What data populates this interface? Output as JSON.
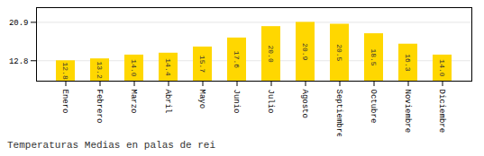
{
  "chart_data": {
    "type": "bar",
    "title": "Temperaturas Medias en palas de rei",
    "categories": [
      "Enero",
      "Febrero",
      "Marzo",
      "Abril",
      "Mayo",
      "Junio",
      "Julio",
      "Agosto",
      "Septiembre",
      "Octubre",
      "Noviembre",
      "Diciembre"
    ],
    "values": [
      12.8,
      13.2,
      14.0,
      14.4,
      15.7,
      17.6,
      20.0,
      20.9,
      20.5,
      18.5,
      16.3,
      14.0
    ],
    "value_labels": [
      "12.8",
      "13.2",
      "14.0",
      "14.4",
      "15.7",
      "17.6",
      "20.0",
      "20.9",
      "20.5",
      "18.5",
      "16.3",
      "14.0"
    ],
    "color": "#FFD700",
    "ylim": [
      8.5,
      24.0
    ],
    "yticks": [
      12.8,
      20.9
    ],
    "grid": true,
    "data_labels": true
  }
}
